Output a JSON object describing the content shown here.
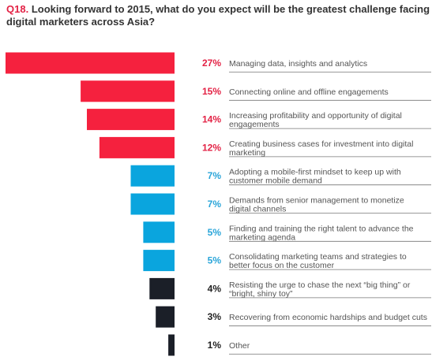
{
  "title": {
    "number": "Q18.",
    "text": "Looking forward to 2015, what do you expect will be the greatest challenge facing digital marketers across Asia?"
  },
  "chart_data": {
    "type": "bar",
    "orientation": "horizontal",
    "xlim": [
      0,
      27
    ],
    "categories": [
      "Managing data, insights and analytics",
      "Connecting online and offline engagements",
      "Increasing profitability and opportunity of digital engagements",
      "Creating business cases for investment into digital marketing",
      "Adopting a mobile-first mindset to keep up with customer mobile demand",
      "Demands from senior management to monetize digital channels",
      "Finding and training the right talent to advance the marketing agenda",
      "Consolidating marketing teams and strategies to better focus on the customer",
      "Resisting the urge to chase the next “big thing” or “bright, shiny toy”",
      "Recovering from economic hardships and budget cuts",
      "Other"
    ],
    "label_lines": [
      [
        "Managing data, insights and analytics"
      ],
      [
        "Connecting online and offline engagements"
      ],
      [
        "Increasing profitability and opportunity of digital",
        "engagements"
      ],
      [
        "Creating business cases for investment into digital",
        "marketing"
      ],
      [
        "Adopting a mobile-first mindset to keep up with",
        "customer mobile demand"
      ],
      [
        "Demands from senior management to monetize",
        "digital channels"
      ],
      [
        "Finding and training the right talent to advance the",
        "marketing agenda"
      ],
      [
        "Consolidating marketing teams and strategies to",
        "better focus on the customer"
      ],
      [
        "Resisting the urge to chase the next “big thing” or",
        "“bright, shiny toy”"
      ],
      [
        "Recovering from economic hardships and budget cuts"
      ],
      [
        "Other"
      ]
    ],
    "values": [
      27,
      15,
      14,
      12,
      7,
      7,
      5,
      5,
      4,
      3,
      1
    ],
    "value_labels": [
      "27%",
      "15%",
      "14%",
      "12%",
      "7%",
      "7%",
      "5%",
      "5%",
      "4%",
      "3%",
      "1%"
    ],
    "colors": [
      "#f5213e",
      "#f5213e",
      "#f5213e",
      "#f5213e",
      "#0aa5de",
      "#0aa5de",
      "#0aa5de",
      "#0aa5de",
      "#1b1f28",
      "#1b1f28",
      "#1b1f28"
    ],
    "pct_colors": [
      "#e32245",
      "#e32245",
      "#e32245",
      "#e32245",
      "#2aa5d9",
      "#2aa5d9",
      "#2aa5d9",
      "#2aa5d9",
      "#222222",
      "#222222",
      "#222222"
    ],
    "grid": false
  }
}
